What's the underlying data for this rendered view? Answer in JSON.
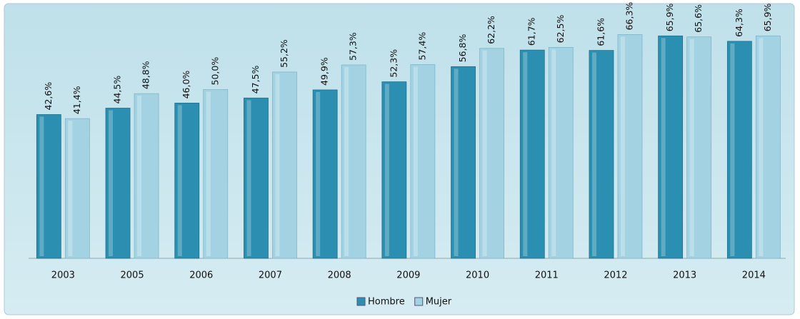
{
  "chart_data": {
    "type": "bar",
    "categories": [
      "2003",
      "2005",
      "2006",
      "2007",
      "2008",
      "2009",
      "2010",
      "2011",
      "2012",
      "2013",
      "2014"
    ],
    "series": [
      {
        "name": "Hombre",
        "color": "#2b8fb1",
        "values": [
          42.6,
          44.5,
          46.0,
          47.5,
          49.9,
          52.3,
          56.8,
          61.7,
          61.6,
          65.9,
          64.3
        ],
        "value_labels": [
          "42,6%",
          "44,5%",
          "46,0%",
          "47,5%",
          "49,9%",
          "52,3%",
          "56,8%",
          "61,7%",
          "61,6%",
          "65,9%",
          "64,3%"
        ]
      },
      {
        "name": "Mujer",
        "color": "#a3d3e3",
        "values": [
          41.4,
          48.8,
          50.0,
          55.2,
          57.3,
          57.4,
          62.2,
          62.5,
          66.3,
          65.6,
          65.9
        ],
        "value_labels": [
          "41,4%",
          "48,8%",
          "50,0%",
          "55,2%",
          "57,3%",
          "57,4%",
          "62,2%",
          "62,5%",
          "66,3%",
          "65,6%",
          "65,9%"
        ]
      }
    ]
  }
}
